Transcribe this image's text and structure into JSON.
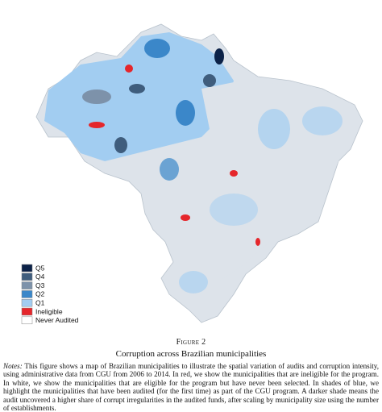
{
  "figure": {
    "legend": [
      {
        "label": "Q5",
        "color": "#0c2248"
      },
      {
        "label": "Q4",
        "color": "#3f5d7d"
      },
      {
        "label": "Q3",
        "color": "#7d92aa"
      },
      {
        "label": "Q2",
        "color": "#3b87c9"
      },
      {
        "label": "Q1",
        "color": "#a2cdf1"
      },
      {
        "label": "Ineligible",
        "color": "#e5262b"
      },
      {
        "label": "Never Audited",
        "color": "#ffffff"
      }
    ],
    "label": "Figure 2",
    "title": "Corruption across Brazilian municipalities",
    "notes_label": "Notes:",
    "notes": "This figure shows a map of Brazilian municipalities to illustrate the spatial variation of audits and corruption intensity, using administrative data from CGU from 2006 to 2014. In red, we show the municipalities that are ineligible for the program. In white, we show the municipalities that are eligible for the program but have never been selected. In shades of blue, we highlight the municipalities that have been audited (for the first time) as part of the CGU program. A darker shade means the audit uncovered a higher share of corrupt irregularities in the audited funds, after scaling by municipality size using the number of establishments."
  }
}
